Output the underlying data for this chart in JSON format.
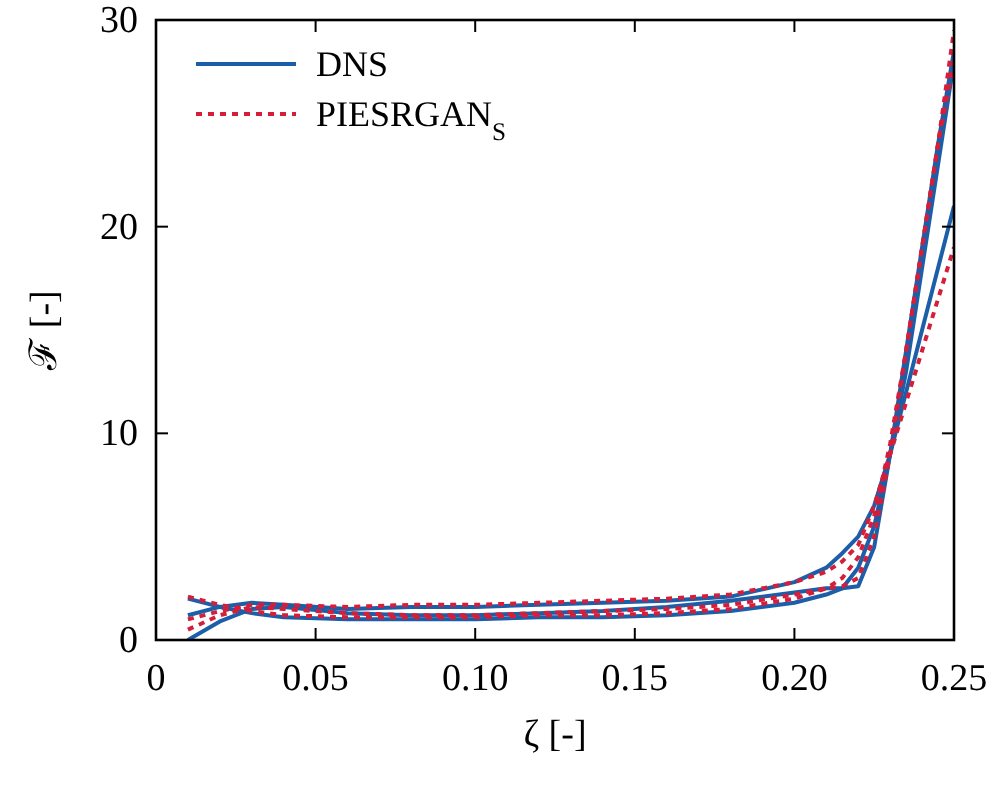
{
  "chart_data": {
    "type": "line",
    "xlabel": "ζ [-]",
    "ylabel": "ℱ [-]",
    "xlim": [
      0,
      0.25
    ],
    "ylim": [
      0,
      30
    ],
    "xticks": [
      0,
      0.05,
      {
        "value": 0.1,
        "label": "0.10"
      },
      0.15,
      {
        "value": 0.2,
        "label": "0.20"
      },
      0.25
    ],
    "yticks": [
      0,
      10,
      20,
      30
    ],
    "legend": "top left",
    "grid": false,
    "x": [
      0.01,
      0.02,
      0.03,
      0.04,
      0.06,
      0.08,
      0.1,
      0.12,
      0.14,
      0.16,
      0.18,
      0.2,
      0.21,
      0.215,
      0.22,
      0.225,
      0.23,
      0.235,
      0.24,
      0.245,
      0.25
    ],
    "series": [
      {
        "name": "DNS",
        "color": "#1c5fa8",
        "line_style": "solid",
        "values": [
          2.0,
          1.6,
          1.3,
          1.1,
          1.0,
          1.0,
          1.0,
          1.1,
          1.1,
          1.2,
          1.4,
          1.8,
          2.2,
          2.5,
          3.5,
          5.5,
          9,
          13,
          18,
          23,
          28
        ]
      },
      {
        "color": "#1c5fa8",
        "line_style": "solid",
        "values": [
          1.2,
          1.6,
          1.8,
          1.7,
          1.5,
          1.6,
          1.6,
          1.7,
          1.8,
          1.9,
          2.1,
          2.8,
          3.5,
          4.2,
          5.0,
          6.5,
          9,
          12,
          15,
          18,
          21
        ]
      },
      {
        "color": "#1c5fa8",
        "line_style": "solid",
        "values": [
          0.0,
          0.9,
          1.5,
          1.6,
          1.3,
          1.2,
          1.2,
          1.3,
          1.4,
          1.6,
          1.9,
          2.3,
          2.5,
          2.5,
          2.6,
          4.5,
          9,
          14,
          19,
          24,
          28.5
        ]
      },
      {
        "name": "PIESRGAN$_{S}$",
        "color": "#d41e3a",
        "line_style": "dotted",
        "values": [
          2.1,
          1.7,
          1.4,
          1.2,
          1.1,
          1.1,
          1.1,
          1.2,
          1.2,
          1.3,
          1.5,
          2.0,
          2.5,
          3.0,
          4.0,
          6.0,
          9.5,
          14,
          19,
          24,
          29.5
        ]
      },
      {
        "color": "#d41e3a",
        "line_style": "dotted",
        "values": [
          1.0,
          1.4,
          1.7,
          1.7,
          1.6,
          1.7,
          1.7,
          1.8,
          1.9,
          2.0,
          2.2,
          2.8,
          3.3,
          3.8,
          4.6,
          6.5,
          9,
          11.5,
          14,
          16.5,
          19
        ]
      },
      {
        "color": "#d41e3a",
        "line_style": "dotted",
        "values": [
          0.5,
          1.2,
          1.6,
          1.5,
          1.3,
          1.2,
          1.2,
          1.3,
          1.4,
          1.5,
          1.7,
          2.2,
          2.5,
          2.6,
          3.0,
          5.0,
          9,
          14,
          19,
          24,
          28
        ]
      }
    ]
  }
}
